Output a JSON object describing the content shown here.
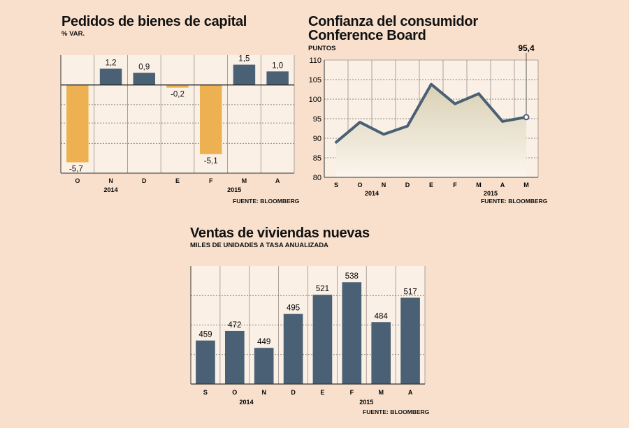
{
  "chart_data": [
    {
      "type": "bar",
      "title": "Pedidos de bienes de capital",
      "subtitle": "% VAR.",
      "categories": [
        "O",
        "N",
        "D",
        "E",
        "F",
        "M",
        "A"
      ],
      "values": [
        -5.7,
        1.2,
        0.9,
        -0.2,
        -5.1,
        1.5,
        1.0
      ],
      "value_labels": [
        "-5,7",
        "1,2",
        "0,9",
        "-0,2",
        "-5,1",
        "1,5",
        "1,0"
      ],
      "year_labels": [
        "2014",
        "2015"
      ],
      "colors": {
        "positive": "#4a6075",
        "negative": "#eeb152"
      },
      "source": "FUENTE: BLOOMBERG",
      "ylim": [
        -6.5,
        2.2
      ],
      "grid": true
    },
    {
      "type": "area",
      "title_lines": [
        "Confianza del consumidor",
        "Conference Board"
      ],
      "subtitle": "PUNTOS",
      "categories": [
        "S",
        "O",
        "N",
        "D",
        "E",
        "F",
        "M",
        "A",
        "M"
      ],
      "values": [
        89.0,
        94.1,
        91.0,
        93.1,
        103.8,
        98.8,
        101.4,
        94.3,
        95.4
      ],
      "highlight_label": "95,4",
      "year_labels": [
        "2014",
        "2015"
      ],
      "y_ticks": [
        "80",
        "85",
        "90",
        "95",
        "100",
        "105",
        "110"
      ],
      "ylim": [
        80,
        110
      ],
      "colors": {
        "line": "#4a6075"
      },
      "source": "FUENTE: BLOOMBERG",
      "grid": true
    },
    {
      "type": "bar",
      "title": "Ventas de viviendas nuevas",
      "subtitle": "MILES DE UNIDADES A TASA ANUALIZADA",
      "categories": [
        "S",
        "O",
        "N",
        "D",
        "E",
        "F",
        "M",
        "A"
      ],
      "values": [
        459,
        472,
        449,
        495,
        521,
        538,
        484,
        517
      ],
      "value_labels": [
        "459",
        "472",
        "449",
        "495",
        "521",
        "538",
        "484",
        "517"
      ],
      "year_labels": [
        "2014",
        "2015"
      ],
      "ylim": [
        400,
        560
      ],
      "colors": {
        "bar": "#4a6075"
      },
      "source": "FUENTE: BLOOMBERG",
      "grid": true
    }
  ]
}
